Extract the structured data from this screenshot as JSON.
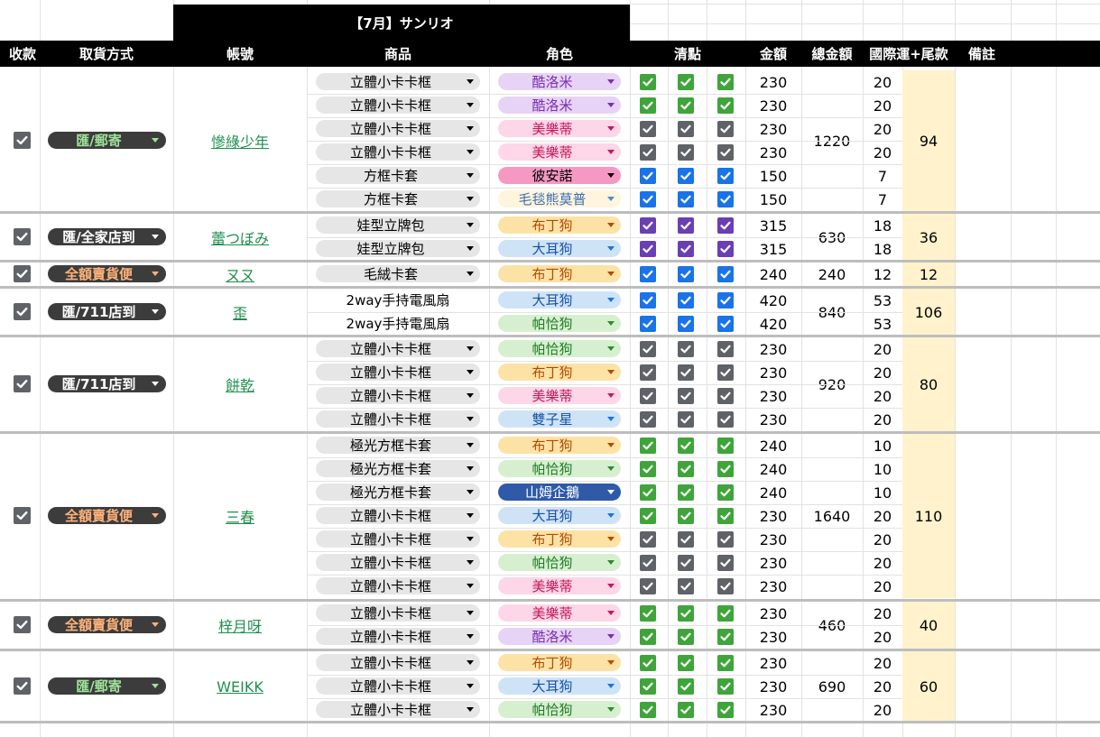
{
  "sheet": {
    "title": "【7月】サンリオ",
    "headers": {
      "paid": "收款",
      "pickup": "取貨方式",
      "account": "帳號",
      "item": "商品",
      "character": "角色",
      "check": "清點",
      "amount": "金額",
      "total": "總金額",
      "shipping": "國際運+尾款",
      "note": "備註"
    }
  },
  "colors": {
    "lavender": "#e6d3f5",
    "pink": "#fdd6e7",
    "hotpink": "#f599c4",
    "cream": "#fff5dc",
    "yellow": "#fde2a5",
    "blue": "#cfe3f7",
    "green": "#d6f0cf",
    "navy": "#2e5aa8",
    "cb_green": "#3fa53b",
    "cb_gray": "#5f6368",
    "cb_blue": "#1a73e8",
    "cb_purple": "#6a3fb5",
    "pick_dark": "#3c3c3c",
    "pick_green_text": "#9fe39a",
    "pick_orange_text": "#ffb27a"
  },
  "groups": [
    {
      "paid": true,
      "pickup": {
        "label": "匯/郵寄",
        "tone": "green"
      },
      "account": "慘綠少年",
      "total": "1220",
      "shipping": "94",
      "rows": [
        {
          "item": "立體小卡卡框",
          "item_dd": true,
          "char": "酷洛米",
          "cc": "lavender",
          "cb": "green",
          "amount": "230",
          "ship": "20"
        },
        {
          "item": "立體小卡卡框",
          "item_dd": true,
          "char": "酷洛米",
          "cc": "lavender",
          "cb": "green",
          "amount": "230",
          "ship": "20"
        },
        {
          "item": "立體小卡卡框",
          "item_dd": true,
          "char": "美樂蒂",
          "cc": "pink",
          "cb": "gray",
          "amount": "230",
          "ship": "20"
        },
        {
          "item": "立體小卡卡框",
          "item_dd": true,
          "char": "美樂蒂",
          "cc": "pink",
          "cb": "gray",
          "amount": "230",
          "ship": "20"
        },
        {
          "item": "方框卡套",
          "item_dd": true,
          "char": "彼安諾",
          "cc": "hotpink",
          "cb": "blue",
          "amount": "150",
          "ship": "7"
        },
        {
          "item": "方框卡套",
          "item_dd": true,
          "char": "毛毯熊莫普",
          "cc": "cream",
          "cb": "blue",
          "amount": "150",
          "ship": "7"
        }
      ]
    },
    {
      "paid": true,
      "pickup": {
        "label": "匯/全家店到",
        "tone": "white"
      },
      "account": "蕾つぼみ",
      "total": "630",
      "shipping": "36",
      "rows": [
        {
          "item": "娃型立牌包",
          "item_dd": true,
          "char": "布丁狗",
          "cc": "yellow",
          "cb": "purple",
          "amount": "315",
          "ship": "18"
        },
        {
          "item": "娃型立牌包",
          "item_dd": true,
          "char": "大耳狗",
          "cc": "blue",
          "cb": "purple",
          "amount": "315",
          "ship": "18"
        }
      ]
    },
    {
      "paid": true,
      "pickup": {
        "label": "全額賣貨便",
        "tone": "orange"
      },
      "account": "ㄡㄡ",
      "total": "240",
      "shipping": "12",
      "rows": [
        {
          "item": "毛絨卡套",
          "item_dd": true,
          "char": "布丁狗",
          "cc": "yellow",
          "cb": "blue",
          "amount": "240",
          "ship": "12"
        }
      ]
    },
    {
      "paid": true,
      "pickup": {
        "label": "匯/711店到",
        "tone": "white"
      },
      "account": "歪",
      "total": "840",
      "shipping": "106",
      "rows": [
        {
          "item": "2way手持電風扇",
          "item_dd": false,
          "char": "大耳狗",
          "cc": "blue",
          "cb": "blue",
          "amount": "420",
          "ship": "53"
        },
        {
          "item": "2way手持電風扇",
          "item_dd": false,
          "char": "帕恰狗",
          "cc": "green",
          "cb": "blue",
          "amount": "420",
          "ship": "53"
        }
      ]
    },
    {
      "paid": true,
      "pickup": {
        "label": "匯/711店到",
        "tone": "white"
      },
      "account": "餅乾",
      "total": "920",
      "shipping": "80",
      "rows": [
        {
          "item": "立體小卡卡框",
          "item_dd": true,
          "char": "帕恰狗",
          "cc": "green",
          "cb": "gray",
          "amount": "230",
          "ship": "20"
        },
        {
          "item": "立體小卡卡框",
          "item_dd": true,
          "char": "布丁狗",
          "cc": "yellow",
          "cb": "gray",
          "amount": "230",
          "ship": "20"
        },
        {
          "item": "立體小卡卡框",
          "item_dd": true,
          "char": "美樂蒂",
          "cc": "pink",
          "cb": "gray",
          "amount": "230",
          "ship": "20"
        },
        {
          "item": "立體小卡卡框",
          "item_dd": true,
          "char": "雙子星",
          "cc": "blue",
          "cb": "gray",
          "amount": "230",
          "ship": "20"
        }
      ]
    },
    {
      "paid": true,
      "pickup": {
        "label": "全額賣貨便",
        "tone": "orange"
      },
      "account": "三春",
      "total": "1640",
      "shipping": "110",
      "rows": [
        {
          "item": "極光方框卡套",
          "item_dd": true,
          "char": "布丁狗",
          "cc": "yellow",
          "cb": "green",
          "amount": "240",
          "ship": "10"
        },
        {
          "item": "極光方框卡套",
          "item_dd": true,
          "char": "帕恰狗",
          "cc": "green",
          "cb": "green",
          "amount": "240",
          "ship": "10"
        },
        {
          "item": "極光方框卡套",
          "item_dd": true,
          "char": "山姆企鵝",
          "cc": "navy",
          "cb": "green",
          "amount": "240",
          "ship": "10"
        },
        {
          "item": "立體小卡卡框",
          "item_dd": true,
          "char": "大耳狗",
          "cc": "blue",
          "cb": "green",
          "amount": "230",
          "ship": "20"
        },
        {
          "item": "立體小卡卡框",
          "item_dd": true,
          "char": "布丁狗",
          "cc": "yellow",
          "cb": "gray",
          "amount": "230",
          "ship": "20"
        },
        {
          "item": "立體小卡卡框",
          "item_dd": true,
          "char": "帕恰狗",
          "cc": "green",
          "cb": "gray",
          "amount": "230",
          "ship": "20"
        },
        {
          "item": "立體小卡卡框",
          "item_dd": true,
          "char": "美樂蒂",
          "cc": "pink",
          "cb": "gray",
          "amount": "230",
          "ship": "20"
        }
      ]
    },
    {
      "paid": true,
      "pickup": {
        "label": "全額賣貨便",
        "tone": "orange"
      },
      "account": "梓月呀",
      "total": "460",
      "shipping": "40",
      "rows": [
        {
          "item": "立體小卡卡框",
          "item_dd": true,
          "char": "美樂蒂",
          "cc": "pink",
          "cb": "green",
          "amount": "230",
          "ship": "20"
        },
        {
          "item": "立體小卡卡框",
          "item_dd": true,
          "char": "酷洛米",
          "cc": "lavender",
          "cb": "green",
          "amount": "230",
          "ship": "20"
        }
      ]
    },
    {
      "paid": true,
      "pickup": {
        "label": "匯/郵寄",
        "tone": "green"
      },
      "account": "WEIKK",
      "total": "690",
      "shipping": "60",
      "rows": [
        {
          "item": "立體小卡卡框",
          "item_dd": true,
          "char": "布丁狗",
          "cc": "yellow",
          "cb": "green",
          "amount": "230",
          "ship": "20"
        },
        {
          "item": "立體小卡卡框",
          "item_dd": true,
          "char": "大耳狗",
          "cc": "blue",
          "cb": "green",
          "amount": "230",
          "ship": "20"
        },
        {
          "item": "立體小卡卡框",
          "item_dd": true,
          "char": "帕恰狗",
          "cc": "green",
          "cb": "green",
          "amount": "230",
          "ship": "20"
        }
      ]
    }
  ]
}
